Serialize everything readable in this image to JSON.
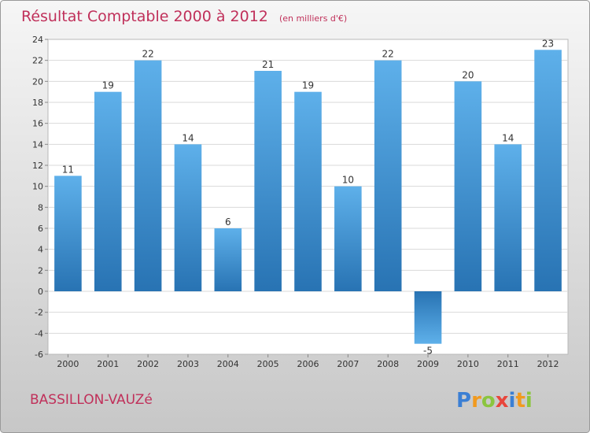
{
  "chart_data": {
    "type": "bar",
    "title": "Résultat Comptable 2000 à 2012",
    "subtitle": "(en milliers d'€)",
    "categories": [
      "2000",
      "2001",
      "2002",
      "2003",
      "2004",
      "2005",
      "2006",
      "2007",
      "2008",
      "2009",
      "2010",
      "2011",
      "2012"
    ],
    "values": [
      11,
      19,
      22,
      14,
      6,
      21,
      19,
      10,
      22,
      -5,
      20,
      14,
      23
    ],
    "ylim": [
      -6,
      24
    ],
    "yticks": [
      -6,
      -4,
      -2,
      0,
      2,
      4,
      6,
      8,
      10,
      12,
      14,
      16,
      18,
      20,
      22,
      24
    ],
    "grid": "horizontal",
    "xlabel": "",
    "ylabel": ""
  },
  "place_name": "BASSILLON-VAUZé",
  "logo": {
    "text": "Proxiti",
    "letters": [
      {
        "ch": "P",
        "color": "#3b7fd4"
      },
      {
        "ch": "r",
        "color": "#f19a1f"
      },
      {
        "ch": "o",
        "color": "#8bc53f"
      },
      {
        "ch": "x",
        "color": "#e8463c"
      },
      {
        "ch": "i",
        "color": "#3b7fd4"
      },
      {
        "ch": "t",
        "color": "#f19a1f"
      },
      {
        "ch": "i",
        "color": "#8bc53f"
      }
    ]
  },
  "colors": {
    "title": "#c0305a",
    "bar_light": "#5eb0ea",
    "bar_dark": "#2873b3",
    "axis_text": "#333333",
    "grid": "#d9d9d9"
  }
}
